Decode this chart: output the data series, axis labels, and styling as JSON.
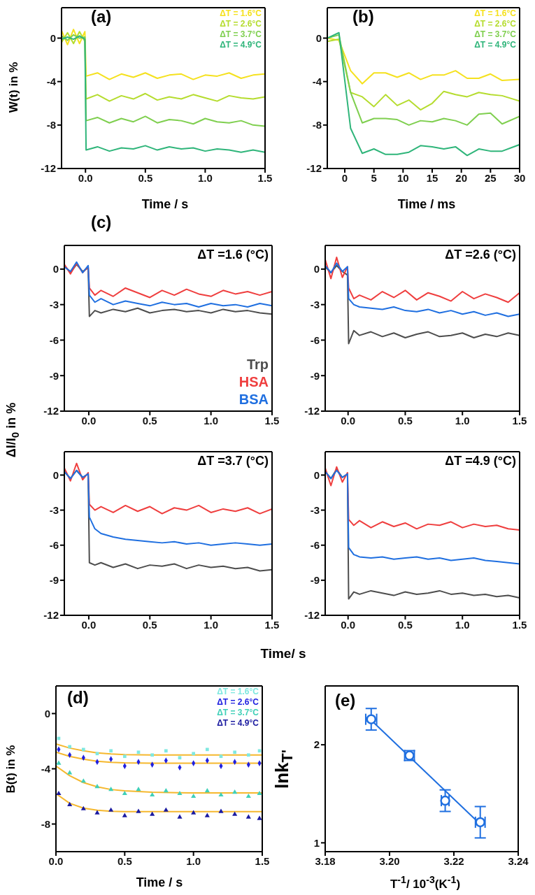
{
  "chart_data": [
    {
      "type": "line",
      "title": "(a)",
      "xlabel": "Time / s",
      "ylabel": "W(t) in %",
      "xlim": [
        -0.2,
        1.5
      ],
      "xticks": [
        {
          "value": 0,
          "label": "0.0"
        },
        0.5,
        {
          "value": 1,
          "label": "1.0"
        },
        1.5
      ],
      "ylim": [
        -12,
        2.8
      ],
      "yticks": [
        -12,
        -8,
        -4,
        0
      ],
      "legend": "top right",
      "x": [
        -0.2,
        -0.15,
        -0.1,
        -0.05,
        -0.005,
        0.005,
        0.1,
        0.2,
        0.3,
        0.4,
        0.5,
        0.6,
        0.7,
        0.8,
        0.9,
        1.0,
        1.1,
        1.2,
        1.3,
        1.4,
        1.5
      ],
      "series": [
        {
          "name": "ΔT = 1.6°C",
          "color": "#f5e11e",
          "values": [
            0.7,
            -0.6,
            0.8,
            -0.5,
            0.6,
            -3.5,
            -3.2,
            -3.8,
            -3.3,
            -3.6,
            -3.2,
            -3.7,
            -3.4,
            -3.3,
            -3.8,
            -3.4,
            -3.5,
            -3.2,
            -3.7,
            -3.4,
            -3.3
          ]
        },
        {
          "name": "ΔT = 2.6°C",
          "color": "#b5dc2e",
          "values": [
            -0.4,
            0.5,
            -0.5,
            0.6,
            -0.3,
            -5.6,
            -5.2,
            -5.8,
            -5.3,
            -5.6,
            -5.1,
            -5.7,
            -5.4,
            -5.6,
            -5.2,
            -5.5,
            -5.8,
            -5.3,
            -5.5,
            -5.6,
            -5.4
          ]
        },
        {
          "name": "ΔT = 3.7°C",
          "color": "#7fcf4f",
          "values": [
            0.2,
            -0.2,
            0.3,
            0.0,
            0.1,
            -7.6,
            -7.3,
            -7.8,
            -7.4,
            -7.7,
            -7.2,
            -7.8,
            -7.5,
            -7.6,
            -7.9,
            -7.4,
            -7.7,
            -7.8,
            -7.6,
            -8.0,
            -8.1
          ]
        },
        {
          "name": "ΔT = 4.9°C",
          "color": "#2fb57a",
          "values": [
            -0.1,
            0.1,
            -0.1,
            0.2,
            -0.1,
            -10.3,
            -10.0,
            -10.4,
            -10.1,
            -10.2,
            -9.9,
            -10.3,
            -10.0,
            -10.2,
            -10.1,
            -10.4,
            -10.2,
            -10.3,
            -10.5,
            -10.3,
            -10.5
          ]
        }
      ]
    },
    {
      "type": "line",
      "title": "(b)",
      "xlabel": "Time / ms",
      "xlim": [
        -3,
        30
      ],
      "xticks": [
        0,
        5,
        10,
        15,
        20,
        25,
        30
      ],
      "ylim": [
        -12,
        2.8
      ],
      "yticks": [
        -12,
        -8,
        -4,
        0
      ],
      "legend": "top right",
      "x": [
        -3,
        -1,
        1,
        3,
        5,
        7,
        9,
        11,
        13,
        15,
        17,
        19,
        21,
        23,
        25,
        27,
        30
      ],
      "series": [
        {
          "name": "ΔT = 1.6°C",
          "color": "#f5e11e",
          "values": [
            0,
            -0.2,
            -3.0,
            -4.2,
            -3.2,
            -3.2,
            -3.6,
            -3.2,
            -3.8,
            -3.4,
            -3.4,
            -3.0,
            -3.7,
            -3.7,
            -3.3,
            -3.9,
            -3.8
          ]
        },
        {
          "name": "ΔT = 2.6°C",
          "color": "#b5dc2e",
          "values": [
            -0.3,
            -0.1,
            -5.0,
            -5.4,
            -6.3,
            -5.2,
            -6.2,
            -5.7,
            -6.6,
            -6.0,
            -4.9,
            -5.2,
            -5.4,
            -5.0,
            -5.2,
            -5.3,
            -5.8
          ]
        },
        {
          "name": "ΔT = 3.7°C",
          "color": "#7fcf4f",
          "values": [
            0,
            0.3,
            -5.0,
            -7.8,
            -7.4,
            -7.4,
            -7.5,
            -8.0,
            -7.6,
            -7.7,
            -7.4,
            -7.6,
            -8.0,
            -7.0,
            -6.9,
            -7.9,
            -7.2
          ]
        },
        {
          "name": "ΔT = 4.9°C",
          "color": "#2fb57a",
          "values": [
            0,
            0.5,
            -8.3,
            -10.6,
            -10.2,
            -10.7,
            -10.7,
            -10.5,
            -9.9,
            -10.0,
            -10.2,
            -10.0,
            -10.8,
            -10.2,
            -10.4,
            -10.4,
            -9.8
          ]
        }
      ]
    },
    {
      "type": "line",
      "title": "(c)",
      "ylabel": "ΔI/I$_{0}$ in %",
      "annotations": [
        "ΔT =1.6 (°C)"
      ],
      "xlim": [
        -0.2,
        1.5
      ],
      "xticks": [
        {
          "value": 0,
          "label": "0.0"
        },
        0.5,
        {
          "value": 1,
          "label": "1.0"
        },
        1.5
      ],
      "ylim": [
        -12,
        2
      ],
      "yticks": [
        -12,
        -9,
        -6,
        -3,
        0
      ],
      "legend": "bottom right",
      "x": [
        -0.2,
        -0.15,
        -0.1,
        -0.05,
        -0.005,
        0.005,
        0.05,
        0.1,
        0.2,
        0.3,
        0.4,
        0.5,
        0.6,
        0.7,
        0.8,
        0.9,
        1.0,
        1.1,
        1.2,
        1.3,
        1.4,
        1.5
      ],
      "series": [
        {
          "name": "Trp",
          "color": "#4d4d4d",
          "values": [
            0.3,
            -0.3,
            0.4,
            -0.2,
            0.1,
            -4.0,
            -3.5,
            -3.7,
            -3.4,
            -3.6,
            -3.3,
            -3.7,
            -3.5,
            -3.4,
            -3.6,
            -3.5,
            -3.7,
            -3.4,
            -3.6,
            -3.5,
            -3.7,
            -3.8
          ]
        },
        {
          "name": "HSA",
          "color": "#ef3e3e",
          "values": [
            0.4,
            -0.4,
            0.5,
            -0.3,
            0.2,
            -1.6,
            -2.2,
            -1.8,
            -2.3,
            -1.6,
            -2.0,
            -2.4,
            -1.8,
            -2.2,
            -1.7,
            -2.1,
            -2.3,
            -1.8,
            -2.1,
            -1.9,
            -2.2,
            -1.9
          ]
        },
        {
          "name": "BSA",
          "color": "#1f6fe0",
          "values": [
            0.2,
            -0.2,
            0.6,
            -0.3,
            0.3,
            -2.2,
            -2.8,
            -2.5,
            -3.0,
            -2.7,
            -2.9,
            -3.1,
            -2.8,
            -3.0,
            -2.9,
            -3.2,
            -2.9,
            -3.1,
            -3.0,
            -3.2,
            -2.9,
            -3.1
          ]
        }
      ]
    },
    {
      "type": "line",
      "annotations": [
        "ΔT =2.6 (°C)"
      ],
      "xlim": [
        -0.2,
        1.5
      ],
      "xticks": [
        {
          "value": 0,
          "label": "0.0"
        },
        0.5,
        {
          "value": 1,
          "label": "1.0"
        },
        1.5
      ],
      "ylim": [
        -12,
        2
      ],
      "yticks": [
        -12,
        -9,
        -6,
        -3,
        0
      ],
      "x": [
        -0.2,
        -0.15,
        -0.1,
        -0.05,
        -0.005,
        0.005,
        0.05,
        0.1,
        0.2,
        0.3,
        0.4,
        0.5,
        0.6,
        0.7,
        0.8,
        0.9,
        1.0,
        1.1,
        1.2,
        1.3,
        1.4,
        1.5
      ],
      "series": [
        {
          "color": "#4d4d4d",
          "values": [
            0.2,
            -0.3,
            0.3,
            -0.2,
            -0.5,
            -6.3,
            -5.2,
            -5.6,
            -5.3,
            -5.7,
            -5.4,
            -5.8,
            -5.5,
            -5.3,
            -5.7,
            -5.6,
            -5.4,
            -5.8,
            -5.5,
            -5.7,
            -5.4,
            -5.6
          ]
        },
        {
          "color": "#ef3e3e",
          "values": [
            0.8,
            -0.8,
            1.0,
            -0.7,
            0.2,
            -1.6,
            -2.5,
            -2.2,
            -2.6,
            -1.9,
            -2.4,
            -1.8,
            -2.6,
            -2.0,
            -2.3,
            -2.7,
            -1.9,
            -2.5,
            -2.1,
            -2.4,
            -2.8,
            -2.0
          ]
        },
        {
          "color": "#1f6fe0",
          "values": [
            0.3,
            -0.3,
            0.5,
            -0.2,
            0.2,
            -2.5,
            -3.0,
            -3.2,
            -3.3,
            -3.4,
            -3.2,
            -3.5,
            -3.6,
            -3.4,
            -3.7,
            -3.5,
            -3.8,
            -3.6,
            -3.9,
            -3.7,
            -4.0,
            -3.8
          ]
        }
      ]
    },
    {
      "type": "line",
      "xlabel": "Time/ s",
      "annotations": [
        "ΔT =3.7 (°C)"
      ],
      "xlim": [
        -0.2,
        1.5
      ],
      "xticks": [
        {
          "value": 0,
          "label": "0.0"
        },
        0.5,
        {
          "value": 1,
          "label": "1.0"
        },
        1.5
      ],
      "ylim": [
        -12,
        2
      ],
      "yticks": [
        -12,
        -9,
        -6,
        -3,
        0
      ],
      "x": [
        -0.2,
        -0.15,
        -0.1,
        -0.05,
        -0.005,
        0.005,
        0.05,
        0.1,
        0.2,
        0.3,
        0.4,
        0.5,
        0.6,
        0.7,
        0.8,
        0.9,
        1.0,
        1.1,
        1.2,
        1.3,
        1.4,
        1.5
      ],
      "series": [
        {
          "color": "#4d4d4d",
          "values": [
            0.3,
            -0.3,
            0.4,
            -0.2,
            0.1,
            -7.5,
            -7.7,
            -7.5,
            -7.9,
            -7.6,
            -8.0,
            -7.7,
            -7.8,
            -7.6,
            -8.0,
            -7.7,
            -7.9,
            -7.8,
            -8.0,
            -7.9,
            -8.2,
            -8.1
          ]
        },
        {
          "color": "#ef3e3e",
          "values": [
            0.6,
            -0.5,
            1.0,
            -0.4,
            0.2,
            -2.5,
            -3.0,
            -2.7,
            -3.2,
            -2.6,
            -3.1,
            -2.7,
            -3.3,
            -2.8,
            -3.0,
            -2.6,
            -3.2,
            -2.9,
            -3.1,
            -2.8,
            -3.3,
            -2.9
          ]
        },
        {
          "color": "#1f6fe0",
          "values": [
            0.3,
            -0.3,
            0.4,
            -0.2,
            0.1,
            -3.6,
            -4.6,
            -5.0,
            -5.3,
            -5.5,
            -5.6,
            -5.7,
            -5.8,
            -5.7,
            -5.9,
            -5.8,
            -6.0,
            -5.9,
            -5.8,
            -5.9,
            -6.0,
            -5.9
          ]
        }
      ]
    },
    {
      "type": "line",
      "annotations": [
        "ΔT =4.9 (°C)"
      ],
      "xlim": [
        -0.2,
        1.5
      ],
      "xticks": [
        {
          "value": 0,
          "label": "0.0"
        },
        0.5,
        {
          "value": 1,
          "label": "1.0"
        },
        1.5
      ],
      "ylim": [
        -12,
        2
      ],
      "yticks": [
        -12,
        -9,
        -6,
        -3,
        0
      ],
      "x": [
        -0.2,
        -0.15,
        -0.1,
        -0.05,
        -0.005,
        0.005,
        0.05,
        0.1,
        0.2,
        0.3,
        0.4,
        0.5,
        0.6,
        0.7,
        0.8,
        0.9,
        1.0,
        1.1,
        1.2,
        1.3,
        1.4,
        1.5
      ],
      "series": [
        {
          "color": "#4d4d4d",
          "values": [
            0.3,
            -0.3,
            0.5,
            -0.2,
            0.1,
            -10.6,
            -10.0,
            -10.2,
            -9.9,
            -10.1,
            -10.3,
            -10.0,
            -10.2,
            -10.1,
            -9.9,
            -10.2,
            -10.1,
            -10.3,
            -10.2,
            -10.4,
            -10.3,
            -10.5
          ]
        },
        {
          "color": "#ef3e3e",
          "values": [
            0.6,
            -0.9,
            0.7,
            -0.6,
            0.2,
            -3.8,
            -4.3,
            -3.9,
            -4.5,
            -4.0,
            -4.4,
            -4.1,
            -4.6,
            -4.2,
            -4.3,
            -4.0,
            -4.5,
            -4.2,
            -4.4,
            -4.3,
            -4.6,
            -4.7
          ]
        },
        {
          "color": "#1f6fe0",
          "values": [
            0.3,
            -0.3,
            0.4,
            -0.2,
            0.1,
            -6.2,
            -6.8,
            -7.0,
            -7.1,
            -7.0,
            -7.2,
            -7.1,
            -7.0,
            -7.2,
            -7.1,
            -7.3,
            -7.2,
            -7.1,
            -7.3,
            -7.4,
            -7.5,
            -7.6
          ]
        }
      ]
    },
    {
      "type": "scatter",
      "title": "(d)",
      "xlabel": "Time / s",
      "ylabel": "B(t) in %",
      "xlim": [
        0,
        1.5
      ],
      "xticks": [
        {
          "value": 0,
          "label": "0.0"
        },
        0.5,
        {
          "value": 1,
          "label": "1.0"
        },
        1.5
      ],
      "ylim": [
        -10,
        2
      ],
      "yticks": [
        -8,
        -4,
        0
      ],
      "legend": "top right",
      "x": [
        0.02,
        0.1,
        0.2,
        0.3,
        0.4,
        0.5,
        0.6,
        0.7,
        0.8,
        0.9,
        1.0,
        1.1,
        1.2,
        1.3,
        1.4,
        1.48
      ],
      "series": [
        {
          "name": "ΔT = 1.6°C",
          "color": "#7fe8e0",
          "marker": "square",
          "values": [
            -1.8,
            -2.4,
            -2.6,
            -2.9,
            -2.7,
            -3.1,
            -2.8,
            -3.0,
            -2.7,
            -3.2,
            -2.9,
            -2.6,
            -3.1,
            -2.8,
            -3.0,
            -2.7
          ]
        },
        {
          "name": "ΔT = 2.6°C",
          "color": "#2020e0",
          "marker": "diamond",
          "values": [
            -2.6,
            -3.0,
            -3.2,
            -3.5,
            -3.3,
            -3.8,
            -3.5,
            -3.7,
            -3.4,
            -3.9,
            -3.6,
            -3.4,
            -3.8,
            -3.5,
            -3.7,
            -3.6
          ]
        },
        {
          "name": "ΔT = 3.7°C",
          "color": "#40d0b8",
          "marker": "triangle",
          "values": [
            -3.6,
            -4.3,
            -4.9,
            -5.3,
            -5.5,
            -5.8,
            -5.5,
            -5.9,
            -5.6,
            -5.8,
            -6.0,
            -5.6,
            -5.9,
            -5.7,
            -6.0,
            -5.8
          ]
        },
        {
          "name": "ΔT = 4.9°C",
          "color": "#1a1aa0",
          "marker": "triangle",
          "values": [
            -5.8,
            -6.6,
            -6.9,
            -7.2,
            -7.0,
            -7.4,
            -7.1,
            -7.3,
            -7.0,
            -7.5,
            -7.2,
            -7.4,
            -7.1,
            -7.3,
            -7.5,
            -7.6
          ]
        },
        {
          "type": "line",
          "color": "#f5b82e",
          "x": [
            0,
            0.1,
            0.2,
            0.3,
            0.4,
            0.5,
            0.7,
            1.0,
            1.5
          ],
          "values": [
            -2.2,
            -2.5,
            -2.7,
            -2.85,
            -2.93,
            -2.97,
            -3.0,
            -3.0,
            -3.0
          ]
        },
        {
          "type": "line",
          "color": "#f5b82e",
          "x": [
            0,
            0.1,
            0.2,
            0.3,
            0.4,
            0.5,
            0.7,
            1.0,
            1.5
          ],
          "values": [
            -2.8,
            -3.1,
            -3.3,
            -3.45,
            -3.53,
            -3.57,
            -3.6,
            -3.6,
            -3.6
          ]
        },
        {
          "type": "line",
          "color": "#f5b82e",
          "x": [
            0,
            0.1,
            0.2,
            0.3,
            0.4,
            0.5,
            0.7,
            1.0,
            1.5
          ],
          "values": [
            -3.8,
            -4.5,
            -5.0,
            -5.3,
            -5.5,
            -5.6,
            -5.7,
            -5.75,
            -5.75
          ]
        },
        {
          "type": "line",
          "color": "#f5b82e",
          "x": [
            0,
            0.1,
            0.2,
            0.3,
            0.4,
            0.5,
            0.7,
            1.0,
            1.5
          ],
          "values": [
            -5.8,
            -6.5,
            -6.85,
            -7.0,
            -7.07,
            -7.1,
            -7.1,
            -7.1,
            -7.1
          ]
        }
      ]
    },
    {
      "type": "scatter",
      "title": "(e)",
      "xlabel": "T$^{-1}$/ 10$^{-3}$(K$^{-1}$)",
      "ylabel": "lnk$_{T'}$",
      "xlim": [
        3.18,
        3.24
      ],
      "xticks": [
        3.18,
        {
          "value": 3.2,
          "label": "3.20"
        },
        3.22,
        3.24
      ],
      "ylim": [
        0.91,
        2.6
      ],
      "yticks": [
        1,
        2
      ],
      "series": [
        {
          "type": "line",
          "color": "#1f6fe0",
          "x": [
            3.1943,
            3.2282
          ],
          "values": [
            2.25,
            1.19
          ]
        },
        {
          "color": "#1f6fe0",
          "marker": "circle",
          "x": [
            3.1943,
            3.2062,
            3.2173,
            3.2282
          ],
          "values": [
            2.26,
            1.89,
            1.43,
            1.21
          ],
          "errors": [
            0.11,
            0.05,
            0.11,
            0.16
          ],
          "xerrors": [
            0.0017,
            0.0015,
            0.0012,
            0.0015
          ]
        }
      ]
    }
  ]
}
